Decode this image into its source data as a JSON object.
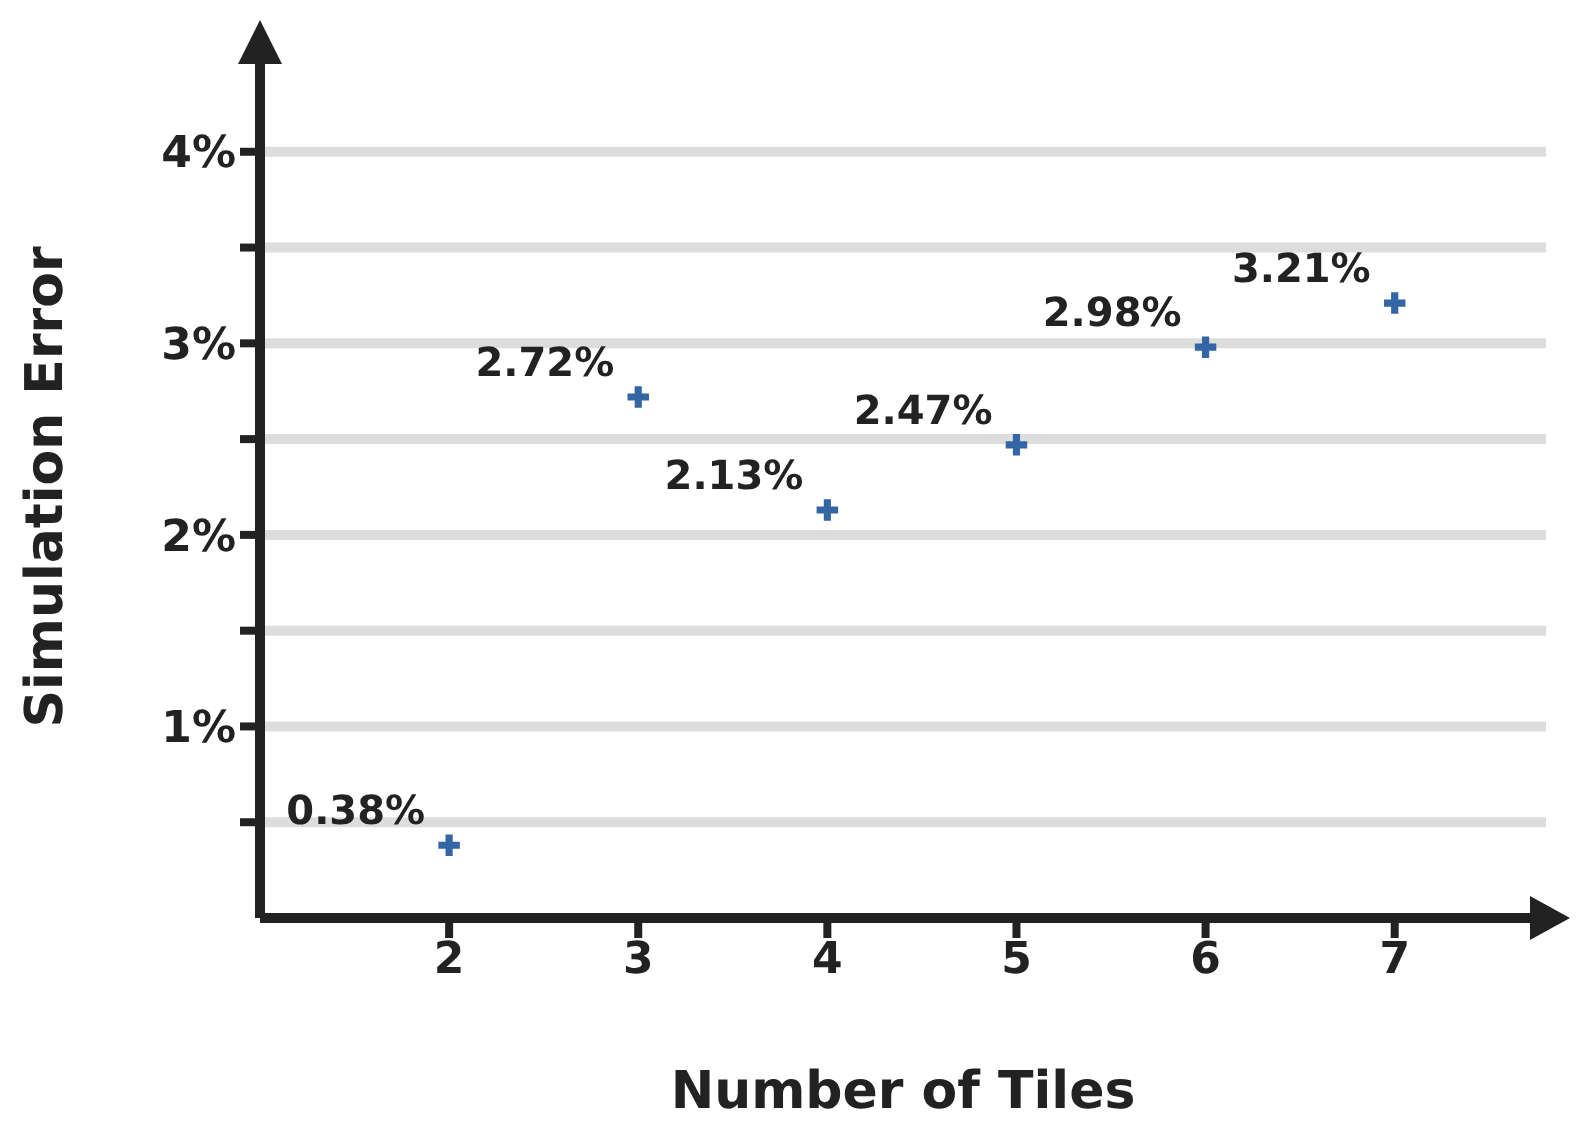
{
  "chart_data": {
    "type": "scatter",
    "xlabel": "Number of Tiles",
    "ylabel": "Simulation Error",
    "x": [
      2,
      3,
      4,
      5,
      6,
      7
    ],
    "series": [
      {
        "color": "#3465a4",
        "values": [
          0.38,
          2.72,
          2.13,
          2.47,
          2.98,
          3.21
        ],
        "value_labels": [
          "0.38%",
          "2.72%",
          "2.13%",
          "2.47%",
          "2.98%",
          "3.21%"
        ]
      }
    ],
    "marker": "cross",
    "grid": "y",
    "xlim": [
      1,
      7.8
    ],
    "xticks": [
      2,
      3,
      4,
      5,
      6,
      7
    ],
    "ylim": [
      0,
      4.5
    ],
    "yticks": [
      {
        "value": 0.5,
        "label": null
      },
      {
        "value": 1,
        "label": "1%"
      },
      {
        "value": 1.5,
        "label": null
      },
      {
        "value": 2,
        "label": "2%"
      },
      {
        "value": 2.5,
        "label": null
      },
      {
        "value": 3,
        "label": "3%"
      },
      {
        "value": 3.5,
        "label": null
      },
      {
        "value": 4,
        "label": "4%"
      }
    ]
  }
}
